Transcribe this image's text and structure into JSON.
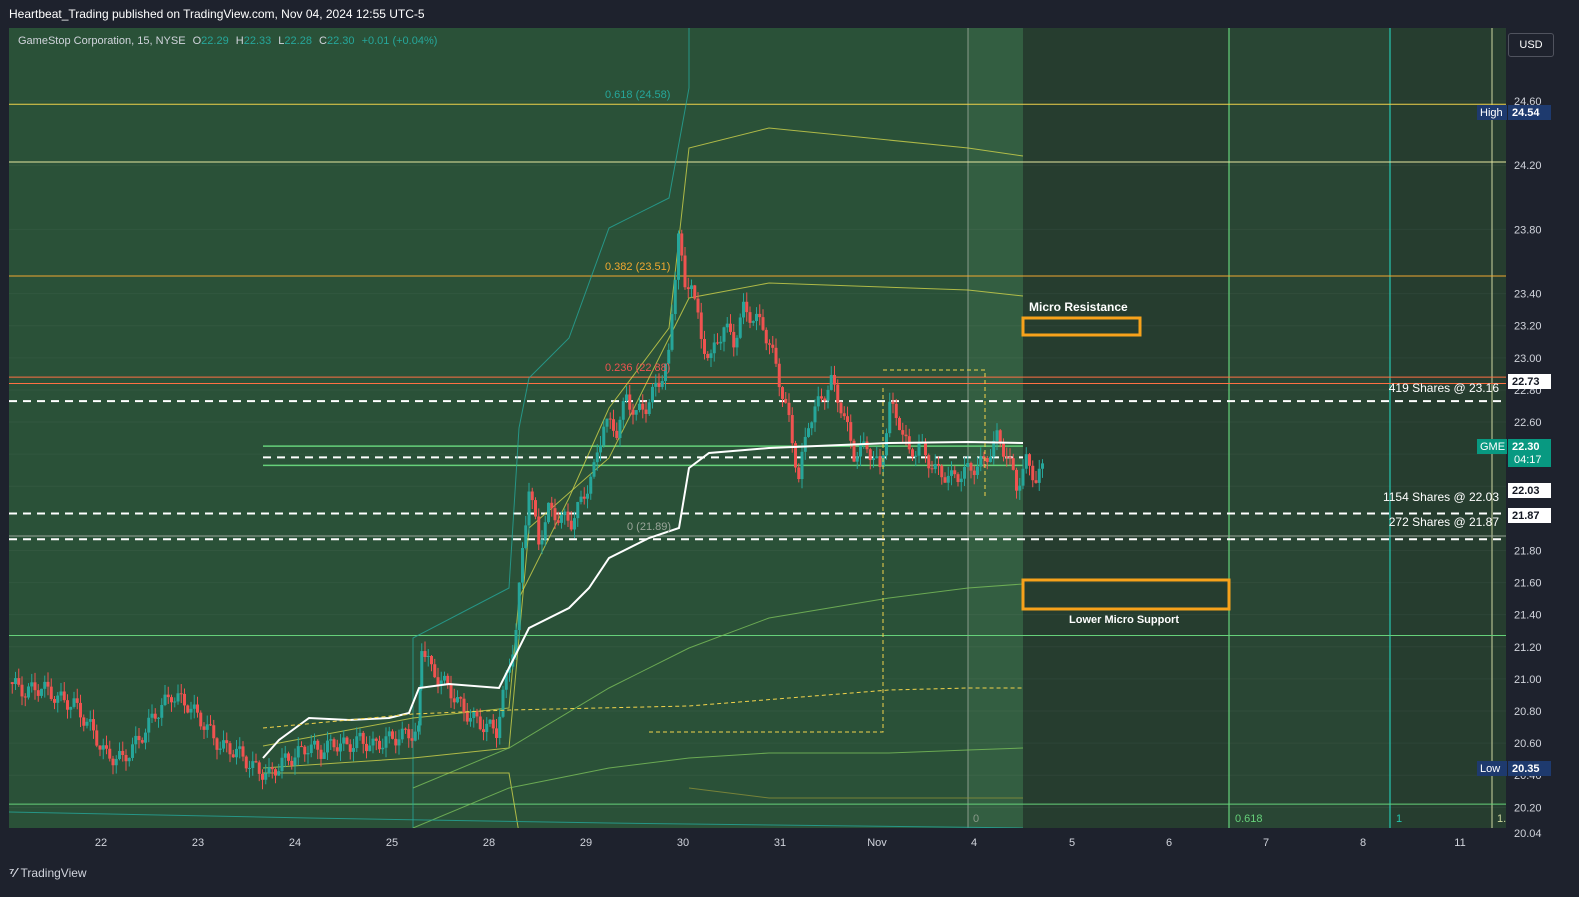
{
  "publish_line": "Heartbeat_Trading published on TradingView.com, Nov 04, 2024 12:55 UTC-5",
  "legend": {
    "name": "GameStop Corporation, 15, NYSE",
    "o_label": "O",
    "o": "22.29",
    "h_label": "H",
    "h": "22.33",
    "l_label": "L",
    "l": "22.28",
    "c_label": "C",
    "c": "22.30",
    "change": "+0.01 (+0.04%)"
  },
  "currency": "USD",
  "brand": "TradingView",
  "colors": {
    "background": "#1e222d",
    "session_shade": "#2f5a3d",
    "up": "#26a69a",
    "down": "#ef5350",
    "vwap": "#ffffff",
    "box": "#f7a21b",
    "fib": "#f0d24b"
  },
  "chart_data": {
    "type": "candlestick",
    "symbol": "GME",
    "interval": "15",
    "ylim": [
      20.0,
      24.7
    ],
    "price_ticks": [
      "24.60",
      "24.20",
      "23.80",
      "23.40",
      "23.20",
      "23.00",
      "22.80",
      "22.60",
      "22.40",
      "22.20",
      "21.80",
      "21.60",
      "21.40",
      "21.20",
      "21.00",
      "20.80",
      "20.60",
      "20.40",
      "20.20",
      "20.04"
    ],
    "time_ticks": [
      "22",
      "23",
      "24",
      "25",
      "28",
      "29",
      "30",
      "31",
      "Nov",
      "4",
      "5",
      "6",
      "7",
      "8",
      "11"
    ],
    "price_labels": [
      {
        "label": "High",
        "value": "24.54"
      },
      {
        "label": "",
        "value": "22.73"
      },
      {
        "label": "GME",
        "value": "22.30",
        "sub": "04:17"
      },
      {
        "label": "",
        "value": "22.03"
      },
      {
        "label": "",
        "value": "21.87"
      },
      {
        "label": "Low",
        "value": "20.35"
      }
    ],
    "fib_labels": [
      {
        "text": "0.618 (24.58)",
        "value": 24.58
      },
      {
        "text": "0.382 (23.51)",
        "value": 23.51
      },
      {
        "text": "0.236 (22.88)",
        "value": 22.88
      },
      {
        "text": "0 (21.89)",
        "value": 21.89
      }
    ],
    "fib_time_labels": [
      "0",
      "0.618",
      "1",
      "1."
    ],
    "annotations": [
      {
        "text": "Micro Resistance"
      },
      {
        "text": "Lower Micro Support"
      },
      {
        "text": "419 Shares @ 23.16"
      },
      {
        "text": "1154 Shares @ 22.03"
      },
      {
        "text": "272 Shares @ 21.87"
      }
    ],
    "horizontal_lines": [
      {
        "value": 24.58,
        "style": "solid",
        "color": "#f0d24b"
      },
      {
        "value": 24.22,
        "style": "solid",
        "color": "#e6e6a0"
      },
      {
        "value": 23.51,
        "style": "solid",
        "color": "#f0a830"
      },
      {
        "value": 22.88,
        "style": "solid",
        "color": "#ff7043"
      },
      {
        "value": 22.84,
        "style": "solid",
        "color": "#ff7043"
      },
      {
        "value": 22.73,
        "style": "dashed",
        "color": "#ffffff"
      },
      {
        "value": 22.45,
        "style": "solid",
        "color": "#66d17a"
      },
      {
        "value": 22.38,
        "style": "dashed",
        "color": "#ffffff"
      },
      {
        "value": 22.33,
        "style": "solid",
        "color": "#66d17a"
      },
      {
        "value": 22.03,
        "style": "dashed",
        "color": "#ffffff"
      },
      {
        "value": 21.89,
        "style": "solid",
        "color": "#9aa59a"
      },
      {
        "value": 21.87,
        "style": "dashed",
        "color": "#ffffff"
      },
      {
        "value": 21.27,
        "style": "solid",
        "color": "#66d17a"
      },
      {
        "value": 20.22,
        "style": "solid",
        "color": "#66d17a"
      }
    ],
    "close_path": [
      [
        0,
        20.98
      ],
      [
        0.5,
        20.92
      ],
      [
        1,
        20.95
      ],
      [
        1.5,
        20.88
      ],
      [
        2,
        20.84
      ],
      [
        2.5,
        20.7
      ],
      [
        3,
        20.52
      ],
      [
        3.5,
        20.5
      ],
      [
        4,
        20.62
      ],
      [
        4.5,
        20.78
      ],
      [
        5,
        20.9
      ],
      [
        5.5,
        20.84
      ],
      [
        6,
        20.72
      ],
      [
        6.5,
        20.58
      ],
      [
        7,
        20.55
      ],
      [
        7.5,
        20.45
      ],
      [
        8,
        20.4
      ],
      [
        8.4,
        20.48
      ],
      [
        8.8,
        20.52
      ],
      [
        9.2,
        20.58
      ],
      [
        9.6,
        20.55
      ],
      [
        10,
        20.6
      ],
      [
        10.4,
        20.58
      ],
      [
        10.8,
        20.62
      ],
      [
        11.2,
        20.58
      ],
      [
        11.6,
        20.62
      ],
      [
        12,
        20.64
      ],
      [
        12.3,
        20.66
      ],
      [
        12.6,
        20.66
      ],
      [
        12.7,
        21.22
      ],
      [
        13,
        21.05
      ],
      [
        13.5,
        20.95
      ],
      [
        14,
        20.8
      ],
      [
        14.5,
        20.72
      ],
      [
        15,
        20.68
      ],
      [
        15.3,
        21.0
      ],
      [
        15.6,
        21.3
      ],
      [
        15.8,
        21.8
      ],
      [
        16,
        22.2
      ],
      [
        16.3,
        21.85
      ],
      [
        16.6,
        22.05
      ],
      [
        17,
        22.0
      ],
      [
        17.3,
        21.98
      ],
      [
        17.6,
        22.1
      ],
      [
        18,
        22.3
      ],
      [
        18.3,
        22.6
      ],
      [
        18.7,
        22.55
      ],
      [
        19,
        22.75
      ],
      [
        19.3,
        22.65
      ],
      [
        19.6,
        22.7
      ],
      [
        20,
        22.85
      ],
      [
        20.3,
        23.0
      ],
      [
        20.6,
        23.8
      ],
      [
        20.8,
        23.4
      ],
      [
        21,
        23.5
      ],
      [
        21.3,
        23.1
      ],
      [
        21.6,
        23.0
      ],
      [
        22,
        23.2
      ],
      [
        22.3,
        23.1
      ],
      [
        22.6,
        23.3
      ],
      [
        22.9,
        23.25
      ],
      [
        23.2,
        23.2
      ],
      [
        23.6,
        22.95
      ],
      [
        24,
        22.6
      ],
      [
        24.3,
        22.25
      ],
      [
        24.6,
        22.6
      ],
      [
        25,
        22.75
      ],
      [
        25.3,
        22.85
      ],
      [
        25.6,
        22.7
      ],
      [
        26,
        22.4
      ],
      [
        26.4,
        22.45
      ],
      [
        26.8,
        22.3
      ],
      [
        27.1,
        22.7
      ],
      [
        27.4,
        22.6
      ],
      [
        27.7,
        22.4
      ],
      [
        28,
        22.45
      ],
      [
        28.5,
        22.3
      ],
      [
        29,
        22.25
      ],
      [
        29.5,
        22.3
      ],
      [
        30,
        22.35
      ],
      [
        30.4,
        22.5
      ],
      [
        30.7,
        22.4
      ],
      [
        31,
        22.2
      ],
      [
        31.3,
        22.35
      ],
      [
        31.6,
        22.25
      ],
      [
        31.8,
        22.3
      ]
    ]
  }
}
